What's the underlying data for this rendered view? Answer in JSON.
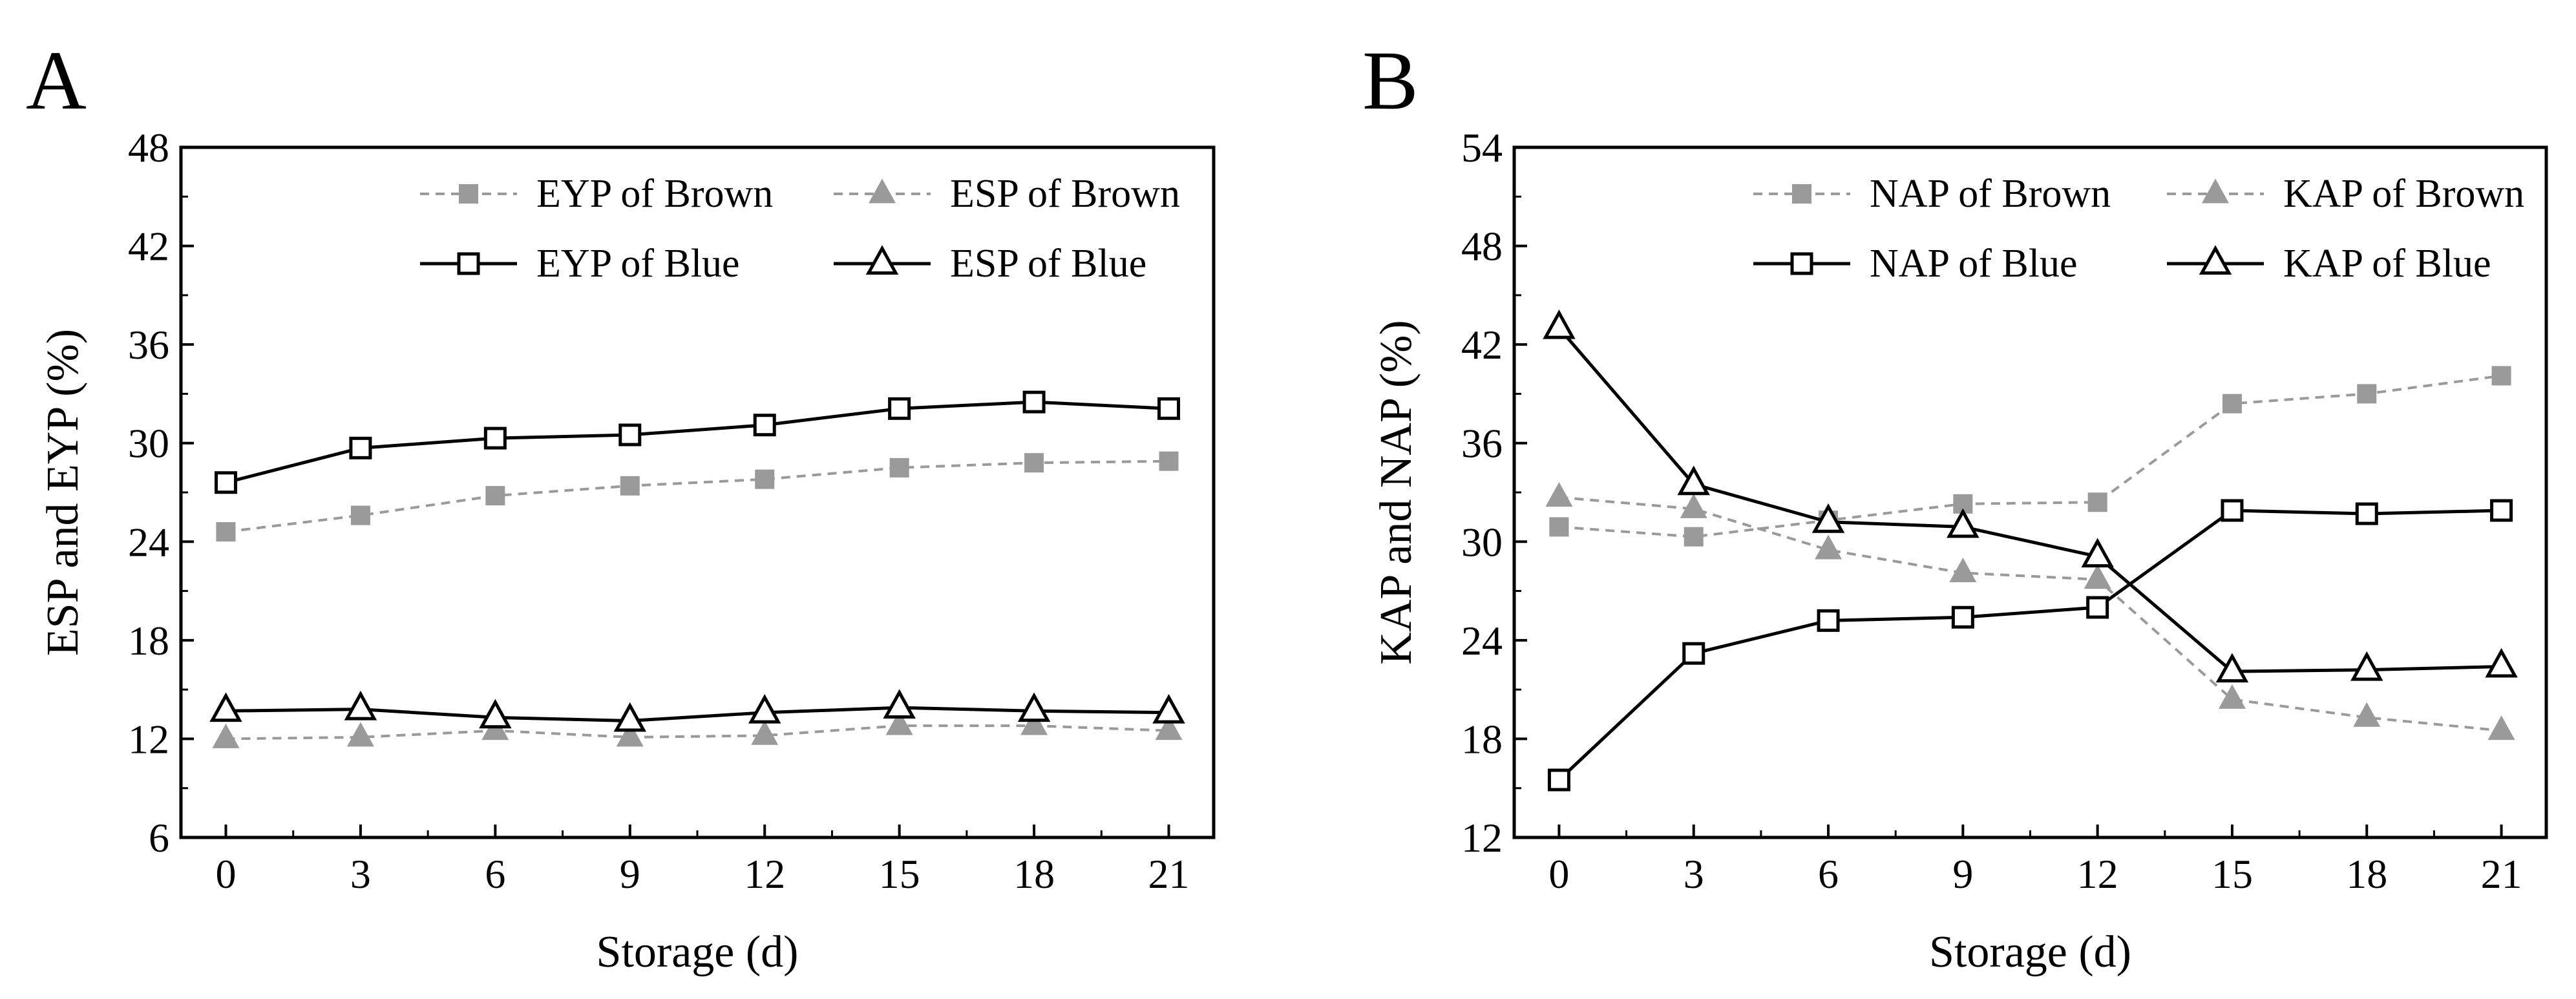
{
  "figure": {
    "colors": {
      "brown": "#9a9a9a",
      "blue": "#000000"
    }
  },
  "chart_data": [
    {
      "panel": "A",
      "type": "line",
      "xlabel": "Storage (d)",
      "ylabel": "ESP and EYP (%)",
      "x": [
        0,
        3,
        6,
        9,
        12,
        15,
        18,
        21
      ],
      "xlim": [
        -1,
        22
      ],
      "ylim": [
        6,
        48
      ],
      "yticks": [
        6,
        12,
        18,
        24,
        30,
        36,
        42,
        48
      ],
      "legend_position": "top-right",
      "series": [
        {
          "name": "EYP of Brown",
          "marker": "square-filled",
          "line": "dashed",
          "color": "#9a9a9a",
          "values": [
            24.6,
            25.6,
            26.8,
            27.4,
            27.8,
            28.5,
            28.8,
            28.9
          ]
        },
        {
          "name": "ESP of Brown",
          "marker": "triangle-filled",
          "line": "dashed",
          "color": "#9a9a9a",
          "values": [
            12.0,
            12.1,
            12.5,
            12.1,
            12.2,
            12.8,
            12.8,
            12.5
          ]
        },
        {
          "name": "EYP of Blue",
          "marker": "square-open",
          "line": "solid",
          "color": "#000000",
          "values": [
            27.6,
            29.7,
            30.3,
            30.5,
            31.1,
            32.1,
            32.5,
            32.1
          ]
        },
        {
          "name": "ESP of Blue",
          "marker": "triangle-open",
          "line": "solid",
          "color": "#000000",
          "values": [
            13.7,
            13.8,
            13.3,
            13.1,
            13.6,
            13.9,
            13.7,
            13.6
          ]
        }
      ]
    },
    {
      "panel": "B",
      "type": "line",
      "xlabel": "Storage (d)",
      "ylabel": "KAP and NAP (%)",
      "x": [
        0,
        3,
        6,
        9,
        12,
        15,
        18,
        21
      ],
      "xlim": [
        -1,
        22
      ],
      "ylim": [
        12,
        54
      ],
      "yticks": [
        12,
        18,
        24,
        30,
        36,
        42,
        48,
        54
      ],
      "legend_position": "top-right",
      "series": [
        {
          "name": "NAP of Brown",
          "marker": "square-filled",
          "line": "dashed",
          "color": "#9a9a9a",
          "values": [
            30.9,
            30.3,
            31.3,
            32.3,
            32.4,
            38.4,
            39.0,
            40.1
          ]
        },
        {
          "name": "KAP of Brown",
          "marker": "triangle-filled",
          "line": "dashed",
          "color": "#9a9a9a",
          "values": [
            32.7,
            32.0,
            29.5,
            28.1,
            27.7,
            20.4,
            19.3,
            18.5
          ]
        },
        {
          "name": "NAP of Blue",
          "marker": "square-open",
          "line": "solid",
          "color": "#000000",
          "values": [
            15.5,
            23.2,
            25.2,
            25.4,
            26.0,
            31.9,
            31.7,
            31.9
          ]
        },
        {
          "name": "KAP of Blue",
          "marker": "triangle-open",
          "line": "solid",
          "color": "#000000",
          "values": [
            43.0,
            33.5,
            31.2,
            30.9,
            29.1,
            22.1,
            22.2,
            22.4
          ]
        }
      ]
    }
  ]
}
